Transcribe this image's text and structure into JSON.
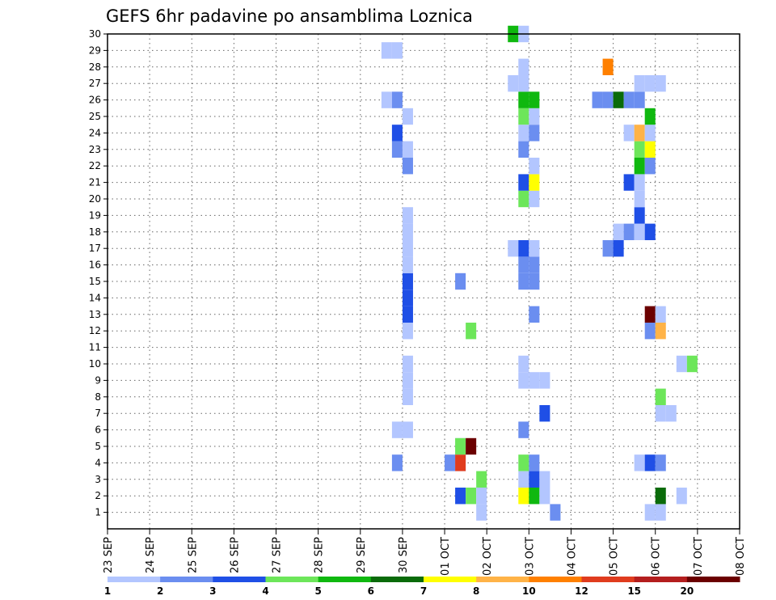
{
  "chart_data": {
    "type": "heatmap",
    "title": "GEFS 6hr padavine po ansamblima Loznica",
    "xlabel": "",
    "ylabel": "",
    "y_tick_labels": [
      "1",
      "2",
      "3",
      "4",
      "5",
      "6",
      "7",
      "8",
      "9",
      "10",
      "11",
      "12",
      "13",
      "14",
      "15",
      "16",
      "17",
      "18",
      "19",
      "20",
      "21",
      "22",
      "23",
      "24",
      "25",
      "26",
      "27",
      "28",
      "29",
      "30"
    ],
    "x_tick_labels": [
      "23 SEP",
      "24 SEP",
      "25 SEP",
      "26 SEP",
      "27 SEP",
      "28 SEP",
      "29 SEP",
      "30 SEP",
      "01 OCT",
      "02 OCT",
      "03 OCT",
      "04 OCT",
      "05 OCT",
      "06 OCT",
      "07 OCT",
      "08 OCT"
    ],
    "time_steps_per_day": 4,
    "member_range": [
      0,
      30
    ],
    "grid": true,
    "legend_position": "bottom",
    "color_bins": {
      "tick_labels": [
        "1",
        "2",
        "3",
        "4",
        "5",
        "6",
        "7",
        "8",
        "10",
        "12",
        "15",
        "20"
      ],
      "colors": [
        "#b3c6ff",
        "#6b8ef0",
        "#1f4fe6",
        "#6de65a",
        "#0fb80f",
        "#0a6b0a",
        "#ffff00",
        "#ffb347",
        "#ff8000",
        "#e03c1e",
        "#b41e1e",
        "#6b0000"
      ]
    },
    "cells": [
      [
        8.75,
        1,
        0
      ],
      [
        10.5,
        1,
        1
      ],
      [
        12.75,
        1,
        0
      ],
      [
        13,
        1,
        0
      ],
      [
        17.25,
        1,
        0
      ],
      [
        17.5,
        1,
        0
      ],
      [
        31,
        1,
        0
      ],
      [
        31.25,
        1,
        0
      ],
      [
        8.25,
        2,
        2
      ],
      [
        8.5,
        2,
        3
      ],
      [
        8.75,
        2,
        0
      ],
      [
        13,
        2,
        5
      ],
      [
        9.75,
        2,
        6
      ],
      [
        10,
        2,
        4
      ],
      [
        10.25,
        2,
        0
      ],
      [
        13.5,
        2,
        0
      ],
      [
        9.75,
        3,
        0
      ],
      [
        10,
        3,
        2
      ],
      [
        10.25,
        3,
        0
      ],
      [
        16.75,
        3,
        0
      ],
      [
        17,
        3,
        0
      ],
      [
        8.75,
        3,
        3
      ],
      [
        8.25,
        4,
        0
      ],
      [
        8,
        4,
        1
      ],
      [
        8.25,
        5,
        0
      ],
      [
        30.25,
        3,
        2
      ],
      [
        30.5,
        3,
        6
      ],
      [
        30.75,
        3,
        3
      ],
      [
        6.75,
        4,
        1
      ],
      [
        8.25,
        4,
        9
      ],
      [
        9.75,
        4,
        3
      ],
      [
        10,
        4,
        1
      ],
      [
        12.5,
        4,
        0
      ],
      [
        12.75,
        4,
        2
      ],
      [
        13,
        4,
        1
      ],
      [
        24,
        4,
        3
      ],
      [
        24.25,
        4,
        3
      ],
      [
        26.5,
        4,
        0
      ],
      [
        26.75,
        4,
        2
      ],
      [
        8.25,
        5,
        3
      ],
      [
        8.5,
        5,
        11
      ],
      [
        6.75,
        6,
        0
      ],
      [
        7,
        6,
        0
      ],
      [
        9.75,
        6,
        1
      ],
      [
        26.75,
        6,
        2
      ],
      [
        27,
        6,
        0
      ],
      [
        10.25,
        7,
        2
      ],
      [
        13,
        7,
        0
      ],
      [
        13.25,
        7,
        0
      ],
      [
        26.5,
        7,
        1
      ],
      [
        27,
        7,
        8
      ],
      [
        27.25,
        7,
        8
      ],
      [
        7,
        8,
        0
      ],
      [
        13,
        8,
        3
      ],
      [
        24.5,
        8,
        3
      ],
      [
        24.75,
        8,
        4
      ],
      [
        7,
        9,
        0
      ],
      [
        9.75,
        9,
        0
      ],
      [
        10,
        9,
        0
      ],
      [
        10.25,
        9,
        0
      ],
      [
        35.75,
        9,
        2
      ],
      [
        7,
        10,
        0
      ],
      [
        9.75,
        10,
        0
      ],
      [
        13.5,
        10,
        0
      ],
      [
        13.75,
        10,
        3
      ],
      [
        34.25,
        10,
        0
      ],
      [
        29.75,
        11,
        0
      ],
      [
        30,
        11,
        0
      ],
      [
        7,
        12,
        0
      ],
      [
        8.5,
        12,
        3
      ],
      [
        12.75,
        12,
        1
      ],
      [
        13,
        12,
        7
      ],
      [
        30,
        12,
        0
      ],
      [
        30.25,
        12,
        7
      ],
      [
        7,
        13,
        2
      ],
      [
        10,
        13,
        1
      ],
      [
        12.75,
        13,
        11
      ],
      [
        13,
        13,
        0
      ],
      [
        32.5,
        13,
        2
      ],
      [
        29.75,
        13,
        0
      ],
      [
        30,
        13,
        3
      ],
      [
        30.25,
        13,
        2
      ],
      [
        30.5,
        13,
        1
      ],
      [
        7,
        14,
        2
      ],
      [
        24.25,
        14,
        0
      ],
      [
        24.5,
        14,
        0
      ],
      [
        24.75,
        14,
        3
      ],
      [
        25,
        14,
        4
      ],
      [
        25.25,
        14,
        2
      ],
      [
        7,
        15,
        2
      ],
      [
        8.25,
        15,
        1
      ],
      [
        9.75,
        15,
        1
      ],
      [
        10,
        15,
        1
      ],
      [
        7,
        16,
        0
      ],
      [
        9.75,
        16,
        1
      ],
      [
        10,
        16,
        1
      ],
      [
        7,
        17,
        0
      ],
      [
        9.5,
        17,
        0
      ],
      [
        9.75,
        17,
        2
      ],
      [
        10,
        17,
        0
      ],
      [
        11.75,
        17,
        1
      ],
      [
        12,
        17,
        2
      ],
      [
        35.25,
        17,
        1
      ],
      [
        35.5,
        17,
        2
      ],
      [
        7,
        18,
        0
      ],
      [
        12,
        18,
        0
      ],
      [
        12.25,
        18,
        1
      ],
      [
        12.5,
        18,
        0
      ],
      [
        12.75,
        18,
        2
      ],
      [
        32.75,
        18,
        0
      ],
      [
        33,
        18,
        5
      ],
      [
        33.25,
        18,
        7
      ],
      [
        7,
        19,
        0
      ],
      [
        12.5,
        19,
        2
      ],
      [
        25,
        19,
        6
      ],
      [
        25.25,
        19,
        0
      ],
      [
        9.75,
        20,
        3
      ],
      [
        10,
        20,
        0
      ],
      [
        12.5,
        20,
        0
      ],
      [
        9.75,
        21,
        2
      ],
      [
        10,
        21,
        6
      ],
      [
        12.25,
        21,
        2
      ],
      [
        12.5,
        21,
        0
      ],
      [
        24,
        21,
        3
      ],
      [
        7,
        22,
        1
      ],
      [
        10,
        22,
        0
      ],
      [
        12.5,
        22,
        4
      ],
      [
        12.75,
        22,
        1
      ],
      [
        6.75,
        23,
        1
      ],
      [
        7,
        23,
        0
      ],
      [
        9.75,
        23,
        1
      ],
      [
        12.5,
        23,
        3
      ],
      [
        12.75,
        23,
        6
      ],
      [
        35.75,
        23,
        3
      ],
      [
        6.75,
        24,
        2
      ],
      [
        9.75,
        24,
        0
      ],
      [
        10,
        24,
        1
      ],
      [
        12.25,
        24,
        0
      ],
      [
        12.5,
        24,
        7
      ],
      [
        12.75,
        24,
        0
      ],
      [
        29,
        24,
        11
      ],
      [
        29.25,
        24,
        0
      ],
      [
        7,
        25,
        0
      ],
      [
        9.75,
        25,
        3
      ],
      [
        10,
        25,
        0
      ],
      [
        12.75,
        25,
        4
      ],
      [
        34.75,
        25,
        0
      ],
      [
        35,
        25,
        0
      ],
      [
        35.75,
        25,
        7
      ],
      [
        6.5,
        26,
        0
      ],
      [
        6.75,
        26,
        1
      ],
      [
        9.75,
        26,
        4
      ],
      [
        10,
        26,
        4
      ],
      [
        11.5,
        26,
        1
      ],
      [
        11.75,
        26,
        1
      ],
      [
        12,
        26,
        5
      ],
      [
        12.25,
        26,
        1
      ],
      [
        12.5,
        26,
        1
      ],
      [
        21.75,
        26,
        5
      ],
      [
        9.5,
        27,
        0
      ],
      [
        9.75,
        27,
        0
      ],
      [
        12.5,
        27,
        0
      ],
      [
        12.75,
        27,
        0
      ],
      [
        13,
        27,
        0
      ],
      [
        25,
        27,
        2
      ],
      [
        25.25,
        27,
        0
      ],
      [
        25.5,
        27,
        0
      ],
      [
        25.75,
        27,
        1
      ],
      [
        9.75,
        28,
        0
      ],
      [
        11.75,
        28,
        8
      ],
      [
        6.5,
        29,
        0
      ],
      [
        6.75,
        29,
        0
      ],
      [
        25,
        29,
        7
      ],
      [
        25.25,
        29,
        0
      ],
      [
        9.5,
        30,
        4
      ],
      [
        9.75,
        30,
        0
      ],
      [
        25,
        30,
        0
      ],
      [
        35,
        30,
        0
      ]
    ]
  }
}
